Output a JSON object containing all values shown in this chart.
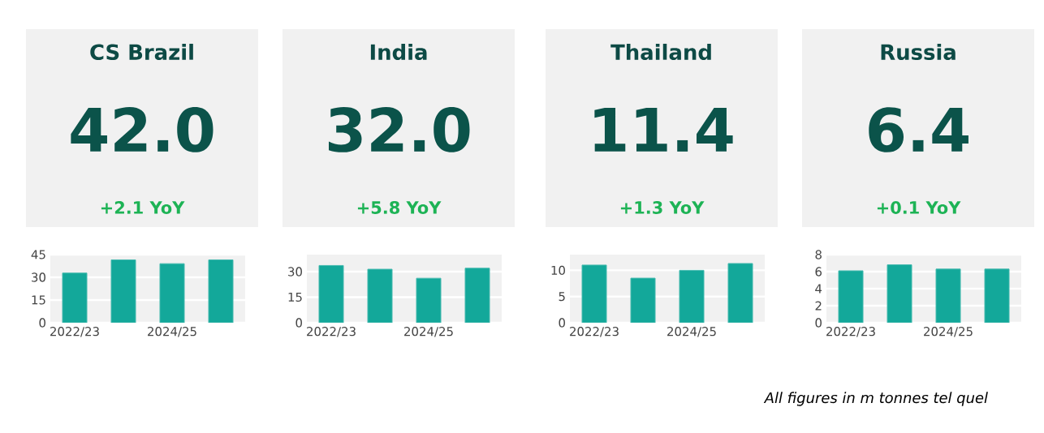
{
  "chart_data": [
    {
      "type": "other",
      "title": "CS Brazil",
      "annotations": [
        "42.0",
        "+2.1 YoY"
      ]
    },
    {
      "type": "other",
      "title": "India",
      "annotations": [
        "32.0",
        "+5.8 YoY"
      ]
    },
    {
      "type": "other",
      "title": "Thailand",
      "annotations": [
        "11.4",
        "+1.3 YoY"
      ]
    },
    {
      "type": "other",
      "title": "Russia",
      "annotations": [
        "6.4",
        "+0.1 YoY"
      ]
    },
    {
      "type": "bar",
      "categories": [
        "2022/23",
        null,
        "2024/25",
        null
      ],
      "values": [
        32.8,
        41.5,
        39.0,
        41.5
      ],
      "color": "#13a89a",
      "ylim": [
        0,
        45
      ],
      "yticks": [
        0,
        15,
        30,
        45
      ],
      "grid": "y"
    },
    {
      "type": "bar",
      "categories": [
        "2022/23",
        null,
        "2024/25",
        null
      ],
      "values": [
        33.6,
        31.4,
        26.1,
        32.0
      ],
      "color": "#13a89a",
      "ylim": [
        0,
        40
      ],
      "yticks": [
        0,
        15,
        30
      ],
      "grid": "y"
    },
    {
      "type": "bar",
      "categories": [
        "2022/23",
        null,
        "2024/25",
        null
      ],
      "values": [
        11.0,
        8.5,
        10.0,
        11.3
      ],
      "color": "#13a89a",
      "ylim": [
        0,
        13
      ],
      "yticks": [
        0,
        5,
        10
      ],
      "grid": "y"
    },
    {
      "type": "bar",
      "categories": [
        "2022/23",
        null,
        "2024/25",
        null
      ],
      "values": [
        6.1,
        6.8,
        6.3,
        6.3
      ],
      "color": "#13a89a",
      "ylim": [
        0,
        8
      ],
      "yticks": [
        0,
        2,
        4,
        6,
        8
      ],
      "grid": "y",
      "annotations": [
        "All figures in m tonnes tel quel"
      ]
    }
  ]
}
